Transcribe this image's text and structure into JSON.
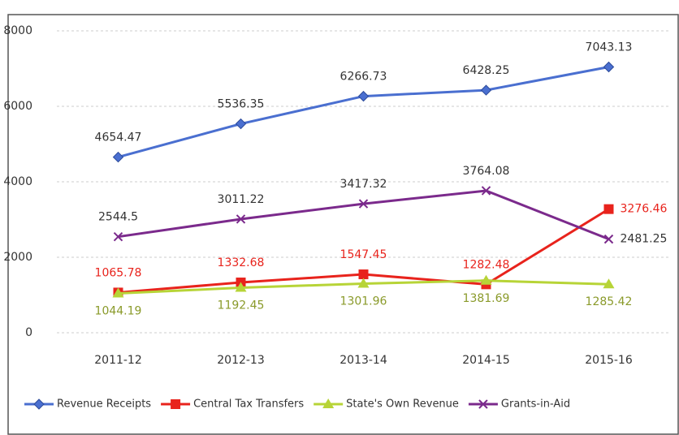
{
  "chart_data": {
    "type": "line",
    "categories": [
      "2011-12",
      "2012-13",
      "2013-14",
      "2014-15",
      "2015-16"
    ],
    "series": [
      {
        "name": "Revenue Receipts",
        "color": "#4a6fd0",
        "marker": "diamond",
        "values": [
          4654.47,
          5536.35,
          6266.73,
          6428.25,
          7043.13
        ]
      },
      {
        "name": "Central Tax Transfers",
        "color": "#e8231c",
        "marker": "square",
        "values": [
          1065.78,
          1332.68,
          1547.45,
          1282.48,
          3276.46
        ]
      },
      {
        "name": "State's Own Revenue",
        "color": "#b7d437",
        "marker": "triangle",
        "values": [
          1044.19,
          1192.45,
          1301.96,
          1381.69,
          1285.42
        ]
      },
      {
        "name": "Grants-in-Aid",
        "color": "#7b2a8c",
        "marker": "x",
        "values": [
          2544.5,
          3011.22,
          3417.32,
          3764.08,
          2481.25
        ]
      }
    ],
    "ylim": [
      0,
      8000
    ],
    "yticks": [
      0,
      2000,
      4000,
      6000,
      8000
    ],
    "grid": true,
    "legend": "bottom"
  }
}
